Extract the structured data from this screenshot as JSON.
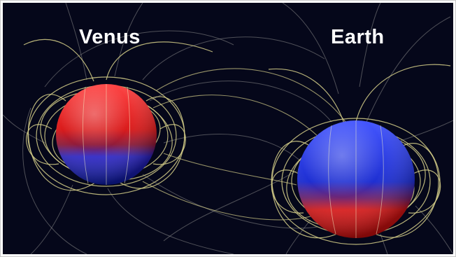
{
  "labels": {
    "venus": "Venus",
    "earth": "Earth"
  },
  "colors": {
    "background": "#05071a",
    "field_lines": "#d6cf8a",
    "field_lines_faint": "#8c8c8c",
    "north_pole": "#e01010",
    "south_pole": "#1a2ad8"
  }
}
